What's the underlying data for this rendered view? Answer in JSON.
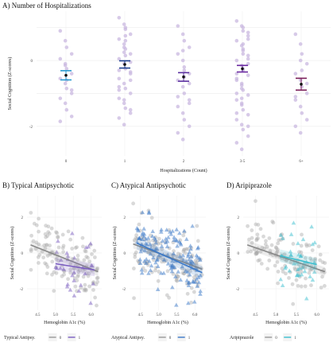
{
  "chart_data": [
    {
      "panel": "A",
      "type": "scatter",
      "title": "A) Number of Hospitalizations",
      "xlabel": "Hospitalizations (Count)",
      "ylabel": "Social Cognition (Z-scores)",
      "categories": [
        "0",
        "1",
        "2",
        "3-5",
        "6+"
      ],
      "y_ticks": [
        "0",
        "-2"
      ],
      "ylim": [
        -2.9,
        1.5
      ],
      "grid": true,
      "colors": [
        "#2a9bd0",
        "#1b3f8f",
        "#5b2fa0",
        "#6a2aa0",
        "#7a1f5a"
      ],
      "point_color": "#c9b8e0",
      "means": [
        -0.45,
        -0.12,
        -0.5,
        -0.25,
        -0.72
      ],
      "se": [
        0.14,
        0.11,
        0.13,
        0.1,
        0.18
      ],
      "points": [
        [
          0.9,
          0.6,
          0.4,
          0.2,
          0.05,
          -0.1,
          -0.25,
          -0.4,
          -0.55,
          -0.7,
          -0.85,
          -1.0,
          -1.15,
          -1.3,
          -1.5,
          -1.7,
          -1.85,
          -0.15,
          -0.6,
          -0.9
        ],
        [
          1.3,
          1.1,
          0.95,
          0.8,
          0.65,
          0.5,
          0.35,
          0.2,
          0.05,
          -0.1,
          -0.25,
          -0.4,
          -0.55,
          -0.7,
          -0.85,
          -1.0,
          -1.15,
          -1.3,
          -1.45,
          -1.6,
          -1.75,
          -1.95,
          0.15,
          -0.05,
          -0.3,
          0.4,
          0.75,
          -0.6,
          -0.9,
          -1.2,
          0.6,
          -0.35,
          -0.8,
          0.25,
          1.0,
          -1.5
        ],
        [
          1.05,
          0.8,
          0.6,
          0.4,
          0.2,
          0.0,
          -0.2,
          -0.4,
          -0.6,
          -0.8,
          -1.0,
          -1.2,
          -1.4,
          -1.6,
          -1.8,
          -2.0,
          -2.2,
          -2.4,
          -0.3,
          -0.7,
          -1.1,
          0.3,
          -0.5,
          -1.3
        ],
        [
          1.2,
          1.05,
          0.9,
          0.75,
          0.6,
          0.45,
          0.3,
          0.15,
          0.0,
          -0.15,
          -0.3,
          -0.45,
          -0.6,
          -0.75,
          -0.9,
          -1.05,
          -1.2,
          -1.35,
          -1.5,
          -1.65,
          -1.8,
          -1.95,
          -2.1,
          -2.3,
          -2.5,
          -2.7,
          0.2,
          -0.1,
          -0.4,
          -0.7,
          0.5,
          0.85,
          -1.0,
          -1.3,
          -0.25,
          0.05,
          -0.55,
          -0.85,
          0.35,
          0.65,
          -1.6,
          -1.15,
          1.0,
          -2.0
        ],
        [
          0.8,
          0.5,
          0.2,
          -0.1,
          -0.4,
          -0.6,
          -0.8,
          -1.0,
          -1.2,
          -1.4,
          -1.6,
          -1.8,
          -2.0,
          -2.2,
          -0.3,
          -0.7,
          -1.1,
          0.0
        ]
      ]
    },
    {
      "panel": "B",
      "type": "scatter",
      "title": "B) Typical Antipsychotic",
      "xlabel": "Hemoglobin A1c (%)",
      "ylabel": "Social Cognition (Z-scores)",
      "x_ticks": [
        "4.5",
        "5.0",
        "5.5",
        "6.0"
      ],
      "y_ticks": [
        "2",
        "0",
        "-2"
      ],
      "xlim": [
        4.2,
        6.3
      ],
      "ylim": [
        -3.2,
        3.2
      ],
      "legend": {
        "title": "Typical Antipsy.",
        "labels": [
          "0",
          "1"
        ],
        "position": "bottom"
      },
      "colors": {
        "group0": "#aaaaaa",
        "group1": "#7a5cc0"
      },
      "fit_lines": [
        {
          "group": "0",
          "x": [
            4.3,
            6.2
          ],
          "y": [
            0.45,
            -1.05
          ]
        },
        {
          "group": "1",
          "x": [
            5.0,
            6.1
          ],
          "y": [
            -0.6,
            -0.95
          ]
        }
      ]
    },
    {
      "panel": "C",
      "type": "scatter",
      "title": "C) Atypical Antipsychotic",
      "xlabel": "Hemoglobin A1c (%)",
      "ylabel": "Social Cognition (Z-scores)",
      "x_ticks": [
        "4.5",
        "5.0",
        "5.5",
        "6.0"
      ],
      "y_ticks": [
        "2",
        "0",
        "-2"
      ],
      "xlim": [
        4.2,
        6.3
      ],
      "ylim": [
        -3.2,
        3.2
      ],
      "legend": {
        "title": "Atypical Antipsy.",
        "labels": [
          "0",
          "1"
        ],
        "position": "bottom"
      },
      "colors": {
        "group0": "#aaaaaa",
        "group1": "#3a78c8"
      },
      "fit_lines": [
        {
          "group": "0",
          "x": [
            4.3,
            6.2
          ],
          "y": [
            0.5,
            -0.9
          ]
        },
        {
          "group": "1",
          "x": [
            4.4,
            6.2
          ],
          "y": [
            0.55,
            -1.1
          ]
        }
      ]
    },
    {
      "panel": "D",
      "type": "scatter",
      "title": "D) Aripiprazole",
      "xlabel": "Hemoglobin A1c (%)",
      "ylabel": "Social Cognition (Z-scores)",
      "x_ticks": [
        "4.5",
        "5.0",
        "5.5",
        "6.0"
      ],
      "y_ticks": [
        "2",
        "0",
        "-2"
      ],
      "xlim": [
        4.2,
        6.3
      ],
      "ylim": [
        -3.2,
        3.2
      ],
      "legend": {
        "title": "Aripiprazole",
        "labels": [
          "0",
          "1"
        ],
        "position": "bottom"
      },
      "colors": {
        "group0": "#aaaaaa",
        "group1": "#3bbfcf"
      },
      "fit_lines": [
        {
          "group": "0",
          "x": [
            4.3,
            6.2
          ],
          "y": [
            0.45,
            -1.05
          ]
        },
        {
          "group": "1",
          "x": [
            5.1,
            6.0
          ],
          "y": [
            -0.15,
            -0.65
          ]
        }
      ]
    }
  ]
}
